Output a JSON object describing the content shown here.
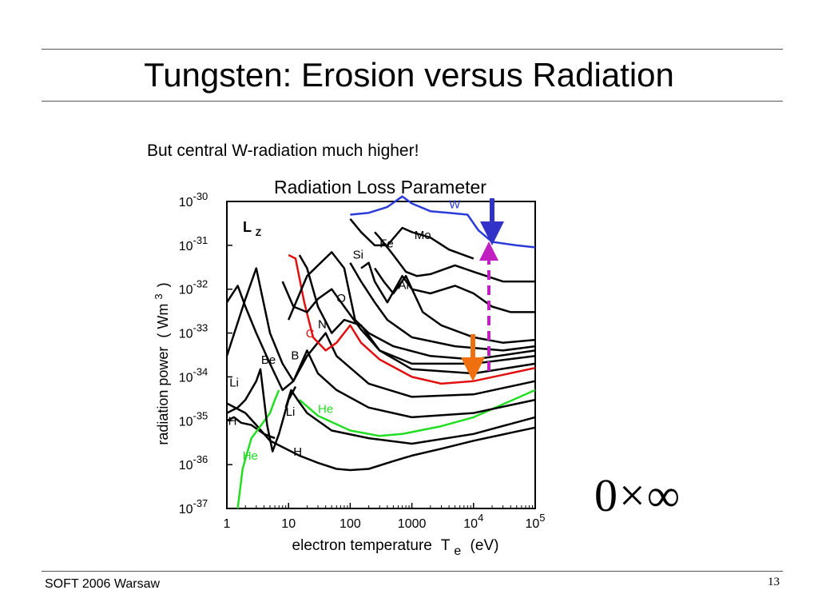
{
  "slide": {
    "title": "Tungsten: Erosion versus Radiation",
    "caption": "But central W-radiation much higher!",
    "formula": "0×∞",
    "footer_left": "SOFT 2006 Warsaw",
    "page_number": "13"
  },
  "chart_data": {
    "type": "line",
    "title": "Radiation Loss Parameter",
    "xlabel": "electron temperature",
    "xlabel_symbol": "T",
    "xlabel_subscript": "e",
    "xlabel_unit": "(eV)",
    "ylabel": "radiation power",
    "ylabel_unit": "( Wm",
    "ylabel_unit_sup": "3",
    "ylabel_unit_close": ")",
    "corner_label": "L",
    "corner_label_sub": "Z",
    "x_scale": "log",
    "y_scale": "log",
    "xlim": [
      1,
      100000
    ],
    "ylim": [
      1e-37,
      1e-30
    ],
    "grid": false,
    "x_ticks": [
      {
        "value": 1,
        "label": "1",
        "sup": ""
      },
      {
        "value": 10,
        "label": "10",
        "sup": ""
      },
      {
        "value": 100,
        "label": "100",
        "sup": ""
      },
      {
        "value": 1000,
        "label": "1000",
        "sup": ""
      },
      {
        "value": 10000,
        "label": "10",
        "sup": "4"
      },
      {
        "value": 100000,
        "label": "10",
        "sup": "5"
      }
    ],
    "y_ticks": [
      {
        "value": 1e-30,
        "base": "10",
        "sup": "-30"
      },
      {
        "value": 1e-31,
        "base": "10",
        "sup": "-31"
      },
      {
        "value": 1e-32,
        "base": "10",
        "sup": "-32"
      },
      {
        "value": 1e-33,
        "base": "10",
        "sup": "-33"
      },
      {
        "value": 1e-34,
        "base": "10",
        "sup": "-34"
      },
      {
        "value": 1e-35,
        "base": "10",
        "sup": "-35"
      },
      {
        "value": 1e-36,
        "base": "10",
        "sup": "-36"
      },
      {
        "value": 1e-37,
        "base": "10",
        "sup": "-37"
      }
    ],
    "colors": {
      "default": "#000000",
      "W": "#2a3bd8",
      "C": "#e01010",
      "He": "#22dd22",
      "blue_arrow": "#3232c8",
      "orange_arrow": "#f07010",
      "magenta_arrow": "#c020c0"
    },
    "series": [
      {
        "name": "H",
        "color": "#000000",
        "label_at": [
          12,
          1.6e-36
        ],
        "points": [
          [
            1,
            2.5e-35
          ],
          [
            2,
            1.5e-35
          ],
          [
            3,
            8e-36
          ],
          [
            5,
            3.5e-36
          ],
          [
            8,
            2.5e-36
          ],
          [
            15,
            1.6e-36
          ],
          [
            30,
            1.1e-36
          ],
          [
            60,
            8e-37
          ],
          [
            100,
            7.5e-37
          ],
          [
            200,
            8e-37
          ],
          [
            500,
            1.2e-36
          ],
          [
            1000,
            1.6e-36
          ],
          [
            3000,
            2.3e-36
          ],
          [
            10000,
            3.5e-36
          ],
          [
            100000,
            7e-36
          ]
        ]
      },
      {
        "name": "H",
        "color": "#000000",
        "label_at": [
          1.05,
          8e-36
        ],
        "points": [
          [
            1,
            1e-35
          ],
          [
            1.3,
            1.2e-35
          ],
          [
            1.7,
            9e-36
          ],
          [
            2.5,
            8e-36
          ],
          [
            4,
            5e-36
          ],
          [
            6,
            4e-36
          ]
        ]
      },
      {
        "name": "He",
        "color": "#22dd22",
        "label_at": [
          1.8,
          1.3e-36
        ],
        "points": [
          [
            1.5,
            1e-37
          ],
          [
            1.8,
            8e-37
          ],
          [
            2.5,
            4e-36
          ],
          [
            3.5,
            7.5e-36
          ],
          [
            5,
            1.5e-35
          ],
          [
            6,
            3e-35
          ],
          [
            7,
            5e-35
          ]
        ]
      },
      {
        "name": "He",
        "color": "#22dd22",
        "label_at": [
          30,
          1.5e-35
        ],
        "points": [
          [
            15,
            3e-35
          ],
          [
            30,
            1.3e-35
          ],
          [
            100,
            6e-36
          ],
          [
            300,
            4.5e-36
          ],
          [
            700,
            5e-36
          ],
          [
            3000,
            7.5e-36
          ],
          [
            10000,
            1.2e-35
          ],
          [
            100000,
            5e-35
          ]
        ]
      },
      {
        "name": "Li",
        "color": "#000000",
        "label_at": [
          1.1,
          6e-35
        ],
        "points": [
          [
            1,
            1.5e-35
          ],
          [
            1.5,
            2e-35
          ],
          [
            2,
            3e-35
          ],
          [
            3,
            8e-35
          ],
          [
            3.5,
            1.5e-34
          ],
          [
            4.5,
            8e-36
          ],
          [
            5.5,
            2e-36
          ],
          [
            7,
            5e-36
          ],
          [
            10,
            3e-35
          ],
          [
            13,
            6e-35
          ]
        ]
      },
      {
        "name": "Li",
        "color": "#000000",
        "label_at": [
          9,
          1.3e-35
        ],
        "points": [
          [
            9,
            2e-35
          ],
          [
            11,
            5e-35
          ],
          [
            14,
            3e-35
          ],
          [
            20,
            1.5e-35
          ],
          [
            50,
            6e-36
          ],
          [
            200,
            4e-36
          ],
          [
            1000,
            3e-36
          ],
          [
            10000,
            5e-36
          ],
          [
            100000,
            1.2e-35
          ]
        ]
      },
      {
        "name": "Be",
        "color": "#000000",
        "label_at": [
          3.6,
          2e-34
        ],
        "points": [
          [
            1,
            5e-33
          ],
          [
            1.5,
            1.2e-32
          ],
          [
            2,
            4e-33
          ],
          [
            3,
            1e-33
          ],
          [
            5,
            2e-34
          ],
          [
            8,
            5e-35
          ],
          [
            12,
            8e-35
          ],
          [
            20,
            4e-34
          ],
          [
            30,
            1.2e-34
          ],
          [
            60,
            5e-35
          ],
          [
            200,
            2e-35
          ],
          [
            1000,
            1.2e-35
          ],
          [
            10000,
            1.5e-35
          ],
          [
            100000,
            3e-35
          ]
        ]
      },
      {
        "name": "B",
        "color": "#000000",
        "label_at": [
          11,
          2.5e-34
        ],
        "points": [
          [
            1,
            3e-34
          ],
          [
            2,
            6e-33
          ],
          [
            3,
            3e-32
          ],
          [
            5,
            1e-33
          ],
          [
            8,
            2e-34
          ],
          [
            12,
            8e-35
          ],
          [
            20,
            3e-34
          ],
          [
            40,
            1e-33
          ],
          [
            60,
            3e-34
          ],
          [
            200,
            7e-35
          ],
          [
            1000,
            3.5e-35
          ],
          [
            10000,
            4e-35
          ],
          [
            100000,
            8e-35
          ]
        ]
      },
      {
        "name": "C",
        "color": "#e01010",
        "label_at": [
          19,
          8e-34
        ],
        "points": [
          [
            10,
            6e-32
          ],
          [
            13,
            5e-32
          ],
          [
            18,
            5e-33
          ],
          [
            25,
            8e-34
          ],
          [
            40,
            4e-34
          ],
          [
            60,
            6e-34
          ],
          [
            100,
            1.5e-33
          ],
          [
            150,
            6e-34
          ],
          [
            300,
            2.5e-34
          ],
          [
            1000,
            1e-34
          ],
          [
            3000,
            7e-35
          ],
          [
            10000,
            8e-35
          ],
          [
            100000,
            1.6e-34
          ]
        ]
      },
      {
        "name": "N",
        "color": "#000000",
        "label_at": [
          30,
          1.3e-33
        ],
        "points": [
          [
            15,
            6e-32
          ],
          [
            20,
            3e-32
          ],
          [
            30,
            4e-33
          ],
          [
            50,
            1e-33
          ],
          [
            80,
            2e-33
          ],
          [
            150,
            1.5e-33
          ],
          [
            300,
            4e-34
          ],
          [
            1000,
            1.5e-34
          ],
          [
            10000,
            1.2e-34
          ],
          [
            100000,
            2e-34
          ]
        ]
      },
      {
        "name": "O",
        "color": "#000000",
        "label_at": [
          60,
          5e-33
        ],
        "points": [
          [
            8,
            1.5e-32
          ],
          [
            12,
            4e-33
          ],
          [
            20,
            3e-33
          ],
          [
            30,
            6e-33
          ],
          [
            50,
            1e-32
          ],
          [
            80,
            4e-33
          ],
          [
            150,
            1.2e-33
          ],
          [
            300,
            4e-34
          ],
          [
            1000,
            2e-34
          ],
          [
            10000,
            2e-34
          ],
          [
            100000,
            3e-34
          ]
        ]
      },
      {
        "name": "",
        "color": "#000000",
        "label_at": null,
        "points": [
          [
            10,
            2e-33
          ],
          [
            20,
            2e-32
          ],
          [
            50,
            7e-32
          ],
          [
            80,
            3e-32
          ],
          [
            120,
            2e-33
          ],
          [
            200,
            1e-33
          ],
          [
            500,
            5e-34
          ],
          [
            2000,
            3e-34
          ],
          [
            10000,
            2.5e-34
          ],
          [
            100000,
            4e-34
          ]
        ]
      },
      {
        "name": "Si",
        "color": "#000000",
        "label_at": [
          110,
          5e-32
        ],
        "points": [
          [
            100,
            4e-32
          ],
          [
            150,
            1.5e-32
          ],
          [
            250,
            5e-33
          ],
          [
            400,
            2e-33
          ],
          [
            1000,
            8e-34
          ],
          [
            5000,
            5e-34
          ],
          [
            30000,
            4e-34
          ],
          [
            100000,
            5e-34
          ]
        ]
      },
      {
        "name": "Ar",
        "color": "#000000",
        "label_at": [
          600,
          1e-32
        ],
        "points": [
          [
            250,
            3e-32
          ],
          [
            350,
            1.5e-32
          ],
          [
            500,
            8e-33
          ],
          [
            800,
            2e-32
          ],
          [
            1500,
            3e-33
          ],
          [
            3000,
            1.5e-33
          ],
          [
            10000,
            8e-34
          ],
          [
            30000,
            6e-34
          ],
          [
            100000,
            7e-34
          ]
        ]
      },
      {
        "name": "",
        "color": "#000000",
        "label_at": null,
        "points": [
          [
            150,
            3e-32
          ],
          [
            200,
            4e-32
          ],
          [
            250,
            1.5e-32
          ],
          [
            400,
            5e-33
          ],
          [
            700,
            2e-32
          ],
          [
            1000,
            1e-32
          ],
          [
            2000,
            8e-33
          ],
          [
            5000,
            1.2e-32
          ],
          [
            10000,
            8e-33
          ],
          [
            20000,
            4e-33
          ],
          [
            40000,
            3e-33
          ],
          [
            100000,
            3e-33
          ]
        ]
      },
      {
        "name": "Fe",
        "color": "#000000",
        "label_at": [
          300,
          9e-32
        ],
        "points": [
          [
            250,
            2e-31
          ],
          [
            300,
            1.5e-31
          ],
          [
            500,
            6e-32
          ],
          [
            800,
            2.5e-32
          ],
          [
            1200,
            2e-32
          ],
          [
            2000,
            2.2e-32
          ],
          [
            5000,
            3.5e-32
          ],
          [
            10000,
            2.5e-32
          ],
          [
            30000,
            1.5e-32
          ],
          [
            100000,
            1.5e-32
          ]
        ]
      },
      {
        "name": "Mo",
        "color": "#000000",
        "label_at": [
          1100,
          1.4e-31
        ],
        "points": [
          [
            100,
            4e-31
          ],
          [
            150,
            2e-31
          ],
          [
            250,
            1e-31
          ],
          [
            400,
            1e-31
          ],
          [
            700,
            2.5e-31
          ],
          [
            1000,
            2e-31
          ],
          [
            2000,
            1.5e-31
          ],
          [
            4000,
            8e-32
          ],
          [
            10000,
            5e-32
          ]
        ]
      },
      {
        "name": "W",
        "color": "#2a3bd8",
        "label_at": [
          4000,
          7e-31
        ],
        "points": [
          [
            100,
            5e-31
          ],
          [
            200,
            5.5e-31
          ],
          [
            400,
            7.5e-31
          ],
          [
            700,
            1.3e-30
          ],
          [
            1000,
            9e-31
          ],
          [
            2000,
            6e-31
          ],
          [
            4000,
            5.5e-31
          ],
          [
            8000,
            5e-31
          ],
          [
            12000,
            2.2e-31
          ],
          [
            20000,
            1.2e-31
          ],
          [
            50000,
            1e-31
          ],
          [
            100000,
            9e-32
          ]
        ]
      }
    ]
  }
}
